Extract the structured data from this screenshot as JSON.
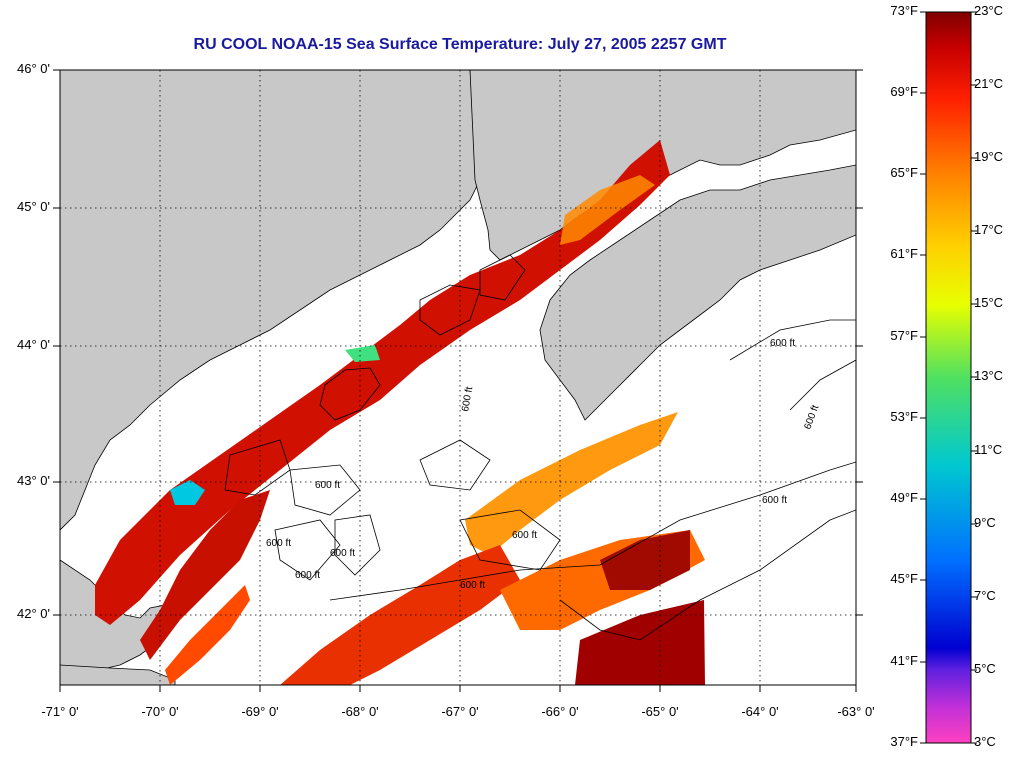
{
  "title": "RU COOL  NOAA-15  Sea Surface Temperature:  July 27, 2005 2257 GMT",
  "map": {
    "lat_labels": [
      "46° 0'",
      "45° 0'",
      "44° 0'",
      "43° 0'",
      "42° 0'"
    ],
    "lon_labels": [
      "-71° 0'",
      "-70° 0'",
      "-69° 0'",
      "-68° 0'",
      "-67° 0'",
      "-66° 0'",
      "-65° 0'",
      "-64° 0'",
      "-63° 0'"
    ],
    "contour_labels": [
      "600 ft",
      "600 ft",
      "600 ft",
      "600 ft",
      "600 ft",
      "600 ft",
      "600 ft",
      "600 ft",
      "600 ft",
      "600 ft"
    ],
    "land_color": "#c8c8c8",
    "cloud_color": "#ffffff"
  },
  "colorbar": {
    "fahrenheit_labels": [
      "73°F",
      "69°F",
      "65°F",
      "61°F",
      "57°F",
      "53°F",
      "49°F",
      "45°F",
      "41°F",
      "37°F"
    ],
    "celsius_labels": [
      "23°C",
      "21°C",
      "19°C",
      "17°C",
      "15°C",
      "13°C",
      "11°C",
      "9°C",
      "7°C",
      "5°C",
      "3°C"
    ],
    "range_celsius": [
      3,
      23
    ],
    "colors": [
      "#ff40c0",
      "#8020e0",
      "#0000d0",
      "#0080ff",
      "#00c8c8",
      "#40e070",
      "#d8ff00",
      "#ffe000",
      "#ff9000",
      "#ff3000",
      "#d00000",
      "#800000"
    ]
  }
}
